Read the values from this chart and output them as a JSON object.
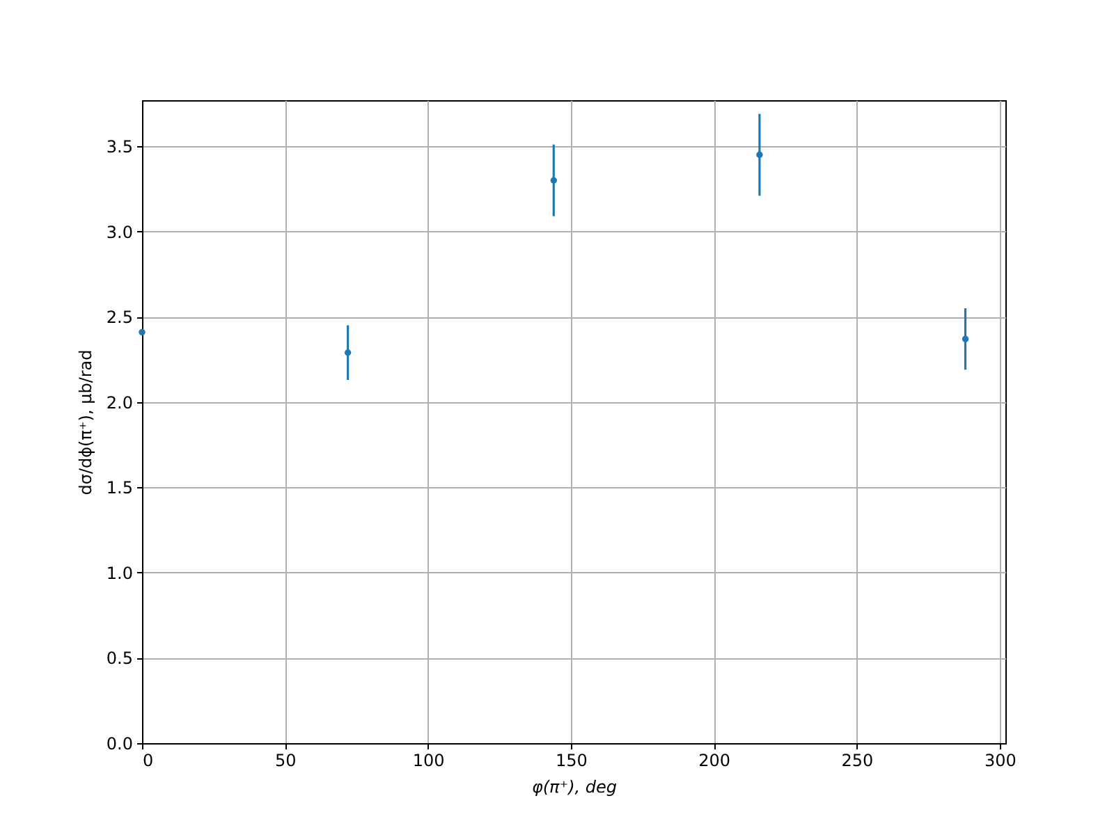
{
  "chart_data": {
    "type": "scatter",
    "xlabel": "φ(π⁺), deg",
    "ylabel": "dσ/dϕ(π⁺), μb/rad",
    "x": [
      0,
      72,
      144,
      216,
      288
    ],
    "series": [
      {
        "color": "#1f77b4",
        "values": [
          2.41,
          2.29,
          3.3,
          3.45,
          2.37
        ],
        "errors": [
          null,
          0.16,
          0.21,
          0.24,
          0.18
        ]
      }
    ],
    "xlim": [
      0,
      302
    ],
    "xticks": [
      0,
      50,
      100,
      150,
      200,
      250,
      300
    ],
    "ylim": [
      0,
      3.77
    ],
    "yticks": [
      {
        "value": 0,
        "label": "0.0"
      },
      0.5,
      {
        "value": 1,
        "label": "1.0"
      },
      1.5,
      {
        "value": 2,
        "label": "2.0"
      },
      2.5,
      {
        "value": 3,
        "label": "3.0"
      },
      3.5
    ],
    "grid": true,
    "marker": "circle"
  }
}
